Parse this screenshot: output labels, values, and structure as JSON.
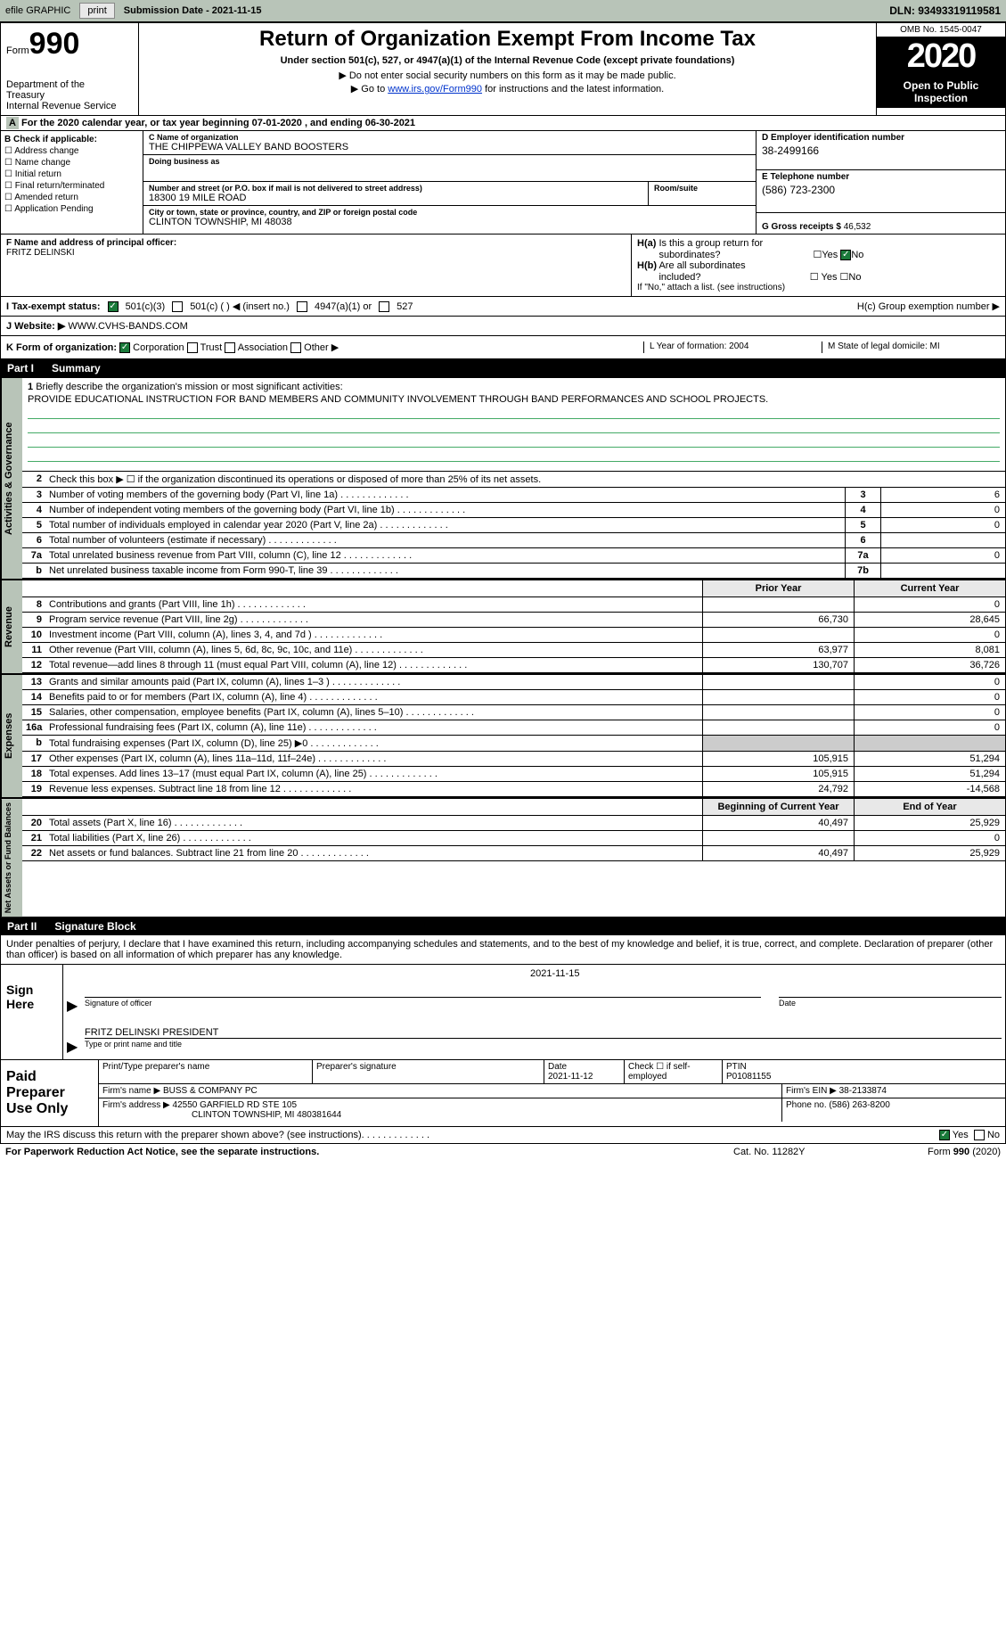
{
  "topbar": {
    "efile": "efile GRAPHIC",
    "print": "print",
    "submission_label": "Submission Date - 2021-11-15",
    "dln": "DLN: 93493319119581"
  },
  "header": {
    "form_word": "Form",
    "form_num": "990",
    "dept": "Department of the Treasury\nInternal Revenue Service",
    "title": "Return of Organization Exempt From Income Tax",
    "subtitle": "Under section 501(c), 527, or 4947(a)(1) of the Internal Revenue Code (except private foundations)",
    "instr1": "▶ Do not enter social security numbers on this form as it may be made public.",
    "instr2_pre": "▶ Go to ",
    "instr2_link": "www.irs.gov/Form990",
    "instr2_post": " for instructions and the latest information.",
    "omb": "OMB No. 1545-0047",
    "year": "2020",
    "inspection": "Open to Public Inspection"
  },
  "period": {
    "text": "For the 2020 calendar year, or tax year beginning 07-01-2020   , and ending 06-30-2021",
    "a_prefix": "A"
  },
  "boxB": {
    "heading": "B Check if applicable:",
    "addr_change": "Address change",
    "name_change": "Name change",
    "initial": "Initial return",
    "final": "Final return/terminated",
    "amended": "Amended return",
    "app_pending": "Application Pending"
  },
  "boxC": {
    "name_label": "C Name of organization",
    "name": "THE CHIPPEWA VALLEY BAND BOOSTERS",
    "dba_label": "Doing business as",
    "dba": "",
    "street_label": "Number and street (or P.O. box if mail is not delivered to street address)",
    "room_label": "Room/suite",
    "street": "18300 19 MILE ROAD",
    "city_label": "City or town, state or province, country, and ZIP or foreign postal code",
    "city": "CLINTON TOWNSHIP, MI  48038"
  },
  "boxD": {
    "ein_label": "D Employer identification number",
    "ein": "38-2499166",
    "phone_label": "E Telephone number",
    "phone": "(586) 723-2300",
    "gross_label": "G Gross receipts $",
    "gross": "46,532"
  },
  "officer": {
    "label": "F  Name and address of principal officer:",
    "name": "FRITZ DELINSKI"
  },
  "boxH": {
    "ha_label": "H(a)  Is this a group return for subordinates?",
    "hb_label": "H(b)  Are all subordinates included?",
    "hb_note": "If \"No,\" attach a list. (see instructions)",
    "hc_label": "H(c)  Group exemption number ▶",
    "yes": "Yes",
    "no": "No"
  },
  "status": {
    "label": "I   Tax-exempt status:",
    "opt1": "501(c)(3)",
    "opt2": "501(c) (   ) ◀ (insert no.)",
    "opt3": "4947(a)(1) or",
    "opt4": "527"
  },
  "website": {
    "label": "J   Website: ▶",
    "value": "WWW.CVHS-BANDS.COM"
  },
  "orgform": {
    "label": "K Form of organization:",
    "corp": "Corporation",
    "trust": "Trust",
    "assoc": "Association",
    "other": "Other ▶",
    "year_label": "L Year of formation: 2004",
    "domicile_label": "M State of legal domicile: MI"
  },
  "part1": {
    "num": "Part I",
    "title": "Summary"
  },
  "side_labels": {
    "gov": "Activities & Governance",
    "rev": "Revenue",
    "exp": "Expenses",
    "net": "Net Assets or Fund Balances"
  },
  "q1": {
    "num": "1",
    "desc": "Briefly describe the organization's mission or most significant activities:",
    "answer": "PROVIDE EDUCATIONAL INSTRUCTION FOR BAND MEMBERS AND COMMUNITY INVOLVEMENT THROUGH BAND PERFORMANCES AND SCHOOL PROJECTS."
  },
  "q2": {
    "num": "2",
    "desc": "Check this box ▶ ☐  if the organization discontinued its operations or disposed of more than 25% of its net assets."
  },
  "rows_gov": [
    {
      "num": "3",
      "desc": "Number of voting members of the governing body (Part VI, line 1a)",
      "box": "3",
      "val": "6"
    },
    {
      "num": "4",
      "desc": "Number of independent voting members of the governing body (Part VI, line 1b)",
      "box": "4",
      "val": "0"
    },
    {
      "num": "5",
      "desc": "Total number of individuals employed in calendar year 2020 (Part V, line 2a)",
      "box": "5",
      "val": "0"
    },
    {
      "num": "6",
      "desc": "Total number of volunteers (estimate if necessary)",
      "box": "6",
      "val": ""
    },
    {
      "num": "7a",
      "desc": "Total unrelated business revenue from Part VIII, column (C), line 12",
      "box": "7a",
      "val": "0"
    },
    {
      "num": "b",
      "desc": "Net unrelated business taxable income from Form 990-T, line 39",
      "box": "7b",
      "val": ""
    }
  ],
  "year_hdr": {
    "prior": "Prior Year",
    "curr": "Current Year"
  },
  "rows_rev": [
    {
      "num": "8",
      "desc": "Contributions and grants (Part VIII, line 1h)",
      "prior": "",
      "curr": "0"
    },
    {
      "num": "9",
      "desc": "Program service revenue (Part VIII, line 2g)",
      "prior": "66,730",
      "curr": "28,645"
    },
    {
      "num": "10",
      "desc": "Investment income (Part VIII, column (A), lines 3, 4, and 7d )",
      "prior": "",
      "curr": "0"
    },
    {
      "num": "11",
      "desc": "Other revenue (Part VIII, column (A), lines 5, 6d, 8c, 9c, 10c, and 11e)",
      "prior": "63,977",
      "curr": "8,081"
    },
    {
      "num": "12",
      "desc": "Total revenue—add lines 8 through 11 (must equal Part VIII, column (A), line 12)",
      "prior": "130,707",
      "curr": "36,726"
    }
  ],
  "rows_exp": [
    {
      "num": "13",
      "desc": "Grants and similar amounts paid (Part IX, column (A), lines 1–3 )",
      "prior": "",
      "curr": "0"
    },
    {
      "num": "14",
      "desc": "Benefits paid to or for members (Part IX, column (A), line 4)",
      "prior": "",
      "curr": "0"
    },
    {
      "num": "15",
      "desc": "Salaries, other compensation, employee benefits (Part IX, column (A), lines 5–10)",
      "prior": "",
      "curr": "0"
    },
    {
      "num": "16a",
      "desc": "Professional fundraising fees (Part IX, column (A), line 11e)",
      "prior": "",
      "curr": "0"
    },
    {
      "num": "b",
      "desc": "Total fundraising expenses (Part IX, column (D), line 25) ▶0",
      "prior": "shaded",
      "curr": "shaded"
    },
    {
      "num": "17",
      "desc": "Other expenses (Part IX, column (A), lines 11a–11d, 11f–24e)",
      "prior": "105,915",
      "curr": "51,294"
    },
    {
      "num": "18",
      "desc": "Total expenses. Add lines 13–17 (must equal Part IX, column (A), line 25)",
      "prior": "105,915",
      "curr": "51,294"
    },
    {
      "num": "19",
      "desc": "Revenue less expenses. Subtract line 18 from line 12",
      "prior": "24,792",
      "curr": "-14,568"
    }
  ],
  "year_hdr2": {
    "prior": "Beginning of Current Year",
    "curr": "End of Year"
  },
  "rows_net": [
    {
      "num": "20",
      "desc": "Total assets (Part X, line 16)",
      "prior": "40,497",
      "curr": "25,929"
    },
    {
      "num": "21",
      "desc": "Total liabilities (Part X, line 26)",
      "prior": "",
      "curr": "0"
    },
    {
      "num": "22",
      "desc": "Net assets or fund balances. Subtract line 21 from line 20",
      "prior": "40,497",
      "curr": "25,929"
    }
  ],
  "part2": {
    "num": "Part II",
    "title": "Signature Block"
  },
  "sig_intro": "Under penalties of perjury, I declare that I have examined this return, including accompanying schedules and statements, and to the best of my knowledge and belief, it is true, correct, and complete. Declaration of preparer (other than officer) is based on all information of which preparer has any knowledge.",
  "sign_here": {
    "label": "Sign Here",
    "sig_label": "Signature of officer",
    "date_label": "Date",
    "date_val": "2021-11-15",
    "name_label": "Type or print name and title",
    "name_val": "FRITZ DELINSKI  PRESIDENT"
  },
  "paid_prep": {
    "label": "Paid Preparer Use Only",
    "col1": "Print/Type preparer's name",
    "col2": "Preparer's signature",
    "col3_label": "Date",
    "col3_val": "2021-11-12",
    "col4_label": "Check ☐ if self-employed",
    "col5_label": "PTIN",
    "col5_val": "P01081155",
    "firm_name_label": "Firm's name     ▶",
    "firm_name": "BUSS & COMPANY PC",
    "firm_ein_label": "Firm's EIN ▶",
    "firm_ein": "38-2133874",
    "firm_addr_label": "Firm's address ▶",
    "firm_addr1": "42550 GARFIELD RD STE 105",
    "firm_addr2": "CLINTON TOWNSHIP, MI  480381644",
    "phone_label": "Phone no.",
    "phone": "(586) 263-8200"
  },
  "discuss": {
    "text": "May the IRS discuss this return with the preparer shown above? (see instructions)",
    "yes": "Yes",
    "no": "No"
  },
  "footer": {
    "left": "For Paperwork Reduction Act Notice, see the separate instructions.",
    "mid": "Cat. No. 11282Y",
    "right": "Form 990 (2020)"
  }
}
